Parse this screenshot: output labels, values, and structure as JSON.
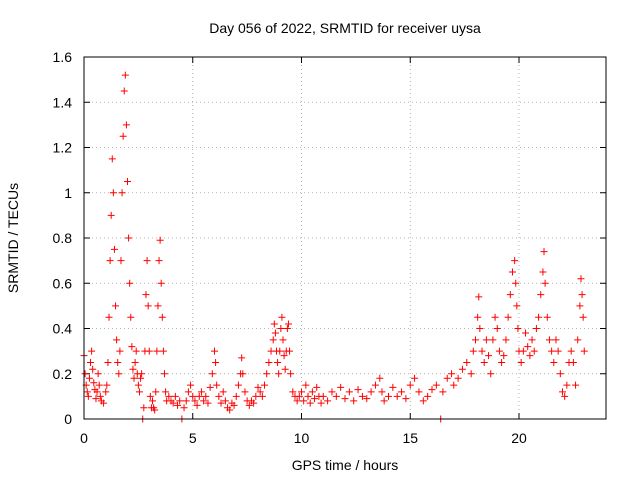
{
  "chart_data": {
    "type": "scatter",
    "title": "Day 056 of 2022, SRMTID for receiver uysa",
    "xlabel": "GPS time / hours",
    "ylabel": "SRMTID / TECUs",
    "xlim": [
      0,
      24
    ],
    "ylim": [
      0,
      1.6
    ],
    "xticks": [
      0,
      5,
      10,
      15,
      20
    ],
    "xtick_labels": [
      "0",
      "5",
      "10",
      "15",
      "20"
    ],
    "yticks": [
      0,
      0.2,
      0.4,
      0.6,
      0.8,
      1,
      1.2,
      1.4,
      1.6
    ],
    "ytick_labels": [
      "0",
      "0.2",
      "0.4",
      "0.6",
      "0.8",
      "1",
      "1.2",
      "1.4",
      "1.6"
    ],
    "grid": true,
    "marker": "+",
    "color": "#ff0000",
    "series": [
      {
        "name": "SRMTID",
        "points": [
          [
            0.0,
            0.28
          ],
          [
            0.05,
            0.2
          ],
          [
            0.1,
            0.15
          ],
          [
            0.15,
            0.12
          ],
          [
            0.2,
            0.1
          ],
          [
            0.25,
            0.18
          ],
          [
            0.3,
            0.25
          ],
          [
            0.35,
            0.3
          ],
          [
            0.4,
            0.22
          ],
          [
            0.45,
            0.16
          ],
          [
            0.5,
            0.13
          ],
          [
            0.55,
            0.09
          ],
          [
            0.6,
            0.12
          ],
          [
            0.65,
            0.2
          ],
          [
            0.7,
            0.15
          ],
          [
            0.75,
            0.1
          ],
          [
            0.8,
            0.08
          ],
          [
            0.9,
            0.07
          ],
          [
            1.0,
            0.12
          ],
          [
            1.05,
            0.15
          ],
          [
            1.1,
            0.25
          ],
          [
            1.15,
            0.45
          ],
          [
            1.2,
            0.7
          ],
          [
            1.25,
            0.9
          ],
          [
            1.3,
            1.15
          ],
          [
            1.35,
            1.0
          ],
          [
            1.4,
            0.75
          ],
          [
            1.45,
            0.5
          ],
          [
            1.5,
            0.35
          ],
          [
            1.55,
            0.25
          ],
          [
            1.6,
            0.2
          ],
          [
            1.65,
            0.3
          ],
          [
            1.7,
            0.7
          ],
          [
            1.75,
            1.0
          ],
          [
            1.8,
            1.25
          ],
          [
            1.85,
            1.45
          ],
          [
            1.9,
            1.52
          ],
          [
            1.95,
            1.3
          ],
          [
            2.0,
            1.05
          ],
          [
            2.05,
            0.8
          ],
          [
            2.1,
            0.6
          ],
          [
            2.15,
            0.45
          ],
          [
            2.2,
            0.32
          ],
          [
            2.25,
            0.22
          ],
          [
            2.3,
            0.18
          ],
          [
            2.35,
            0.25
          ],
          [
            2.4,
            0.3
          ],
          [
            2.45,
            0.2
          ],
          [
            2.5,
            0.15
          ],
          [
            2.55,
            0.12
          ],
          [
            2.6,
            0.18
          ],
          [
            2.65,
            0.2
          ],
          [
            2.7,
            0.0
          ],
          [
            2.75,
            0.05
          ],
          [
            2.8,
            0.3
          ],
          [
            2.85,
            0.55
          ],
          [
            2.9,
            0.7
          ],
          [
            2.95,
            0.5
          ],
          [
            3.0,
            0.3
          ],
          [
            3.05,
            0.1
          ],
          [
            3.1,
            0.05
          ],
          [
            3.15,
            0.08
          ],
          [
            3.2,
            0.05
          ],
          [
            3.25,
            0.04
          ],
          [
            3.3,
            0.12
          ],
          [
            3.35,
            0.3
          ],
          [
            3.4,
            0.5
          ],
          [
            3.45,
            0.7
          ],
          [
            3.5,
            0.79
          ],
          [
            3.55,
            0.6
          ],
          [
            3.6,
            0.45
          ],
          [
            3.65,
            0.3
          ],
          [
            3.7,
            0.2
          ],
          [
            3.75,
            0.12
          ],
          [
            3.8,
            0.08
          ],
          [
            3.9,
            0.1
          ],
          [
            4.0,
            0.08
          ],
          [
            4.1,
            0.07
          ],
          [
            4.2,
            0.1
          ],
          [
            4.3,
            0.06
          ],
          [
            4.4,
            0.08
          ],
          [
            4.5,
            0.0
          ],
          [
            4.6,
            0.05
          ],
          [
            4.7,
            0.08
          ],
          [
            4.8,
            0.12
          ],
          [
            4.9,
            0.15
          ],
          [
            5.0,
            0.1
          ],
          [
            5.1,
            0.08
          ],
          [
            5.2,
            0.06
          ],
          [
            5.3,
            0.1
          ],
          [
            5.4,
            0.12
          ],
          [
            5.5,
            0.08
          ],
          [
            5.6,
            0.1
          ],
          [
            5.7,
            0.07
          ],
          [
            5.8,
            0.14
          ],
          [
            5.9,
            0.2
          ],
          [
            6.0,
            0.3
          ],
          [
            6.05,
            0.25
          ],
          [
            6.1,
            0.15
          ],
          [
            6.2,
            0.1
          ],
          [
            6.3,
            0.07
          ],
          [
            6.4,
            0.12
          ],
          [
            6.5,
            0.08
          ],
          [
            6.6,
            0.05
          ],
          [
            6.7,
            0.04
          ],
          [
            6.8,
            0.07
          ],
          [
            6.9,
            0.06
          ],
          [
            7.0,
            0.1
          ],
          [
            7.1,
            0.15
          ],
          [
            7.2,
            0.2
          ],
          [
            7.25,
            0.27
          ],
          [
            7.3,
            0.2
          ],
          [
            7.4,
            0.12
          ],
          [
            7.5,
            0.08
          ],
          [
            7.6,
            0.06
          ],
          [
            7.7,
            0.08
          ],
          [
            7.8,
            0.07
          ],
          [
            7.9,
            0.1
          ],
          [
            8.0,
            0.14
          ],
          [
            8.1,
            0.12
          ],
          [
            8.2,
            0.1
          ],
          [
            8.3,
            0.15
          ],
          [
            8.4,
            0.2
          ],
          [
            8.5,
            0.25
          ],
          [
            8.6,
            0.3
          ],
          [
            8.7,
            0.35
          ],
          [
            8.75,
            0.42
          ],
          [
            8.8,
            0.38
          ],
          [
            8.85,
            0.3
          ],
          [
            8.9,
            0.25
          ],
          [
            8.95,
            0.2
          ],
          [
            9.0,
            0.3
          ],
          [
            9.05,
            0.4
          ],
          [
            9.1,
            0.45
          ],
          [
            9.15,
            0.35
          ],
          [
            9.2,
            0.28
          ],
          [
            9.25,
            0.22
          ],
          [
            9.3,
            0.3
          ],
          [
            9.35,
            0.4
          ],
          [
            9.4,
            0.42
          ],
          [
            9.45,
            0.3
          ],
          [
            9.5,
            0.2
          ],
          [
            9.6,
            0.12
          ],
          [
            9.7,
            0.1
          ],
          [
            9.8,
            0.08
          ],
          [
            9.9,
            0.1
          ],
          [
            10.0,
            0.12
          ],
          [
            10.1,
            0.08
          ],
          [
            10.2,
            0.15
          ],
          [
            10.3,
            0.1
          ],
          [
            10.4,
            0.07
          ],
          [
            10.5,
            0.12
          ],
          [
            10.6,
            0.09
          ],
          [
            10.7,
            0.14
          ],
          [
            10.8,
            0.1
          ],
          [
            10.9,
            0.07
          ],
          [
            11.0,
            0.1
          ],
          [
            11.2,
            0.08
          ],
          [
            11.4,
            0.12
          ],
          [
            11.6,
            0.1
          ],
          [
            11.8,
            0.14
          ],
          [
            12.0,
            0.09
          ],
          [
            12.2,
            0.12
          ],
          [
            12.4,
            0.08
          ],
          [
            12.6,
            0.13
          ],
          [
            12.8,
            0.1
          ],
          [
            13.0,
            0.09
          ],
          [
            13.2,
            0.12
          ],
          [
            13.4,
            0.15
          ],
          [
            13.6,
            0.18
          ],
          [
            13.7,
            0.12
          ],
          [
            13.8,
            0.08
          ],
          [
            14.0,
            0.1
          ],
          [
            14.2,
            0.14
          ],
          [
            14.4,
            0.1
          ],
          [
            14.6,
            0.12
          ],
          [
            14.8,
            0.09
          ],
          [
            15.0,
            0.15
          ],
          [
            15.2,
            0.18
          ],
          [
            15.4,
            0.12
          ],
          [
            15.6,
            0.08
          ],
          [
            15.8,
            0.1
          ],
          [
            16.0,
            0.13
          ],
          [
            16.2,
            0.15
          ],
          [
            16.4,
            0.0
          ],
          [
            16.5,
            0.12
          ],
          [
            16.7,
            0.18
          ],
          [
            16.9,
            0.2
          ],
          [
            17.0,
            0.15
          ],
          [
            17.2,
            0.18
          ],
          [
            17.4,
            0.22
          ],
          [
            17.6,
            0.25
          ],
          [
            17.8,
            0.2
          ],
          [
            17.9,
            0.3
          ],
          [
            18.0,
            0.35
          ],
          [
            18.1,
            0.45
          ],
          [
            18.15,
            0.54
          ],
          [
            18.2,
            0.4
          ],
          [
            18.3,
            0.3
          ],
          [
            18.4,
            0.25
          ],
          [
            18.5,
            0.35
          ],
          [
            18.6,
            0.28
          ],
          [
            18.7,
            0.2
          ],
          [
            18.8,
            0.35
          ],
          [
            18.9,
            0.45
          ],
          [
            19.0,
            0.4
          ],
          [
            19.1,
            0.3
          ],
          [
            19.2,
            0.25
          ],
          [
            19.3,
            0.28
          ],
          [
            19.4,
            0.35
          ],
          [
            19.5,
            0.45
          ],
          [
            19.6,
            0.55
          ],
          [
            19.7,
            0.65
          ],
          [
            19.8,
            0.7
          ],
          [
            19.85,
            0.6
          ],
          [
            19.9,
            0.5
          ],
          [
            19.95,
            0.4
          ],
          [
            20.0,
            0.3
          ],
          [
            20.1,
            0.25
          ],
          [
            20.2,
            0.3
          ],
          [
            20.3,
            0.38
          ],
          [
            20.4,
            0.32
          ],
          [
            20.5,
            0.28
          ],
          [
            20.6,
            0.35
          ],
          [
            20.7,
            0.3
          ],
          [
            20.8,
            0.4
          ],
          [
            20.9,
            0.45
          ],
          [
            21.0,
            0.55
          ],
          [
            21.1,
            0.65
          ],
          [
            21.15,
            0.74
          ],
          [
            21.2,
            0.6
          ],
          [
            21.3,
            0.45
          ],
          [
            21.4,
            0.35
          ],
          [
            21.5,
            0.3
          ],
          [
            21.6,
            0.25
          ],
          [
            21.7,
            0.35
          ],
          [
            21.8,
            0.3
          ],
          [
            21.9,
            0.2
          ],
          [
            22.0,
            0.12
          ],
          [
            22.1,
            0.1
          ],
          [
            22.2,
            0.15
          ],
          [
            22.3,
            0.25
          ],
          [
            22.4,
            0.3
          ],
          [
            22.5,
            0.25
          ],
          [
            22.6,
            0.15
          ],
          [
            22.7,
            0.35
          ],
          [
            22.8,
            0.5
          ],
          [
            22.85,
            0.62
          ],
          [
            22.9,
            0.55
          ],
          [
            22.95,
            0.45
          ],
          [
            23.0,
            0.3
          ]
        ]
      }
    ]
  }
}
